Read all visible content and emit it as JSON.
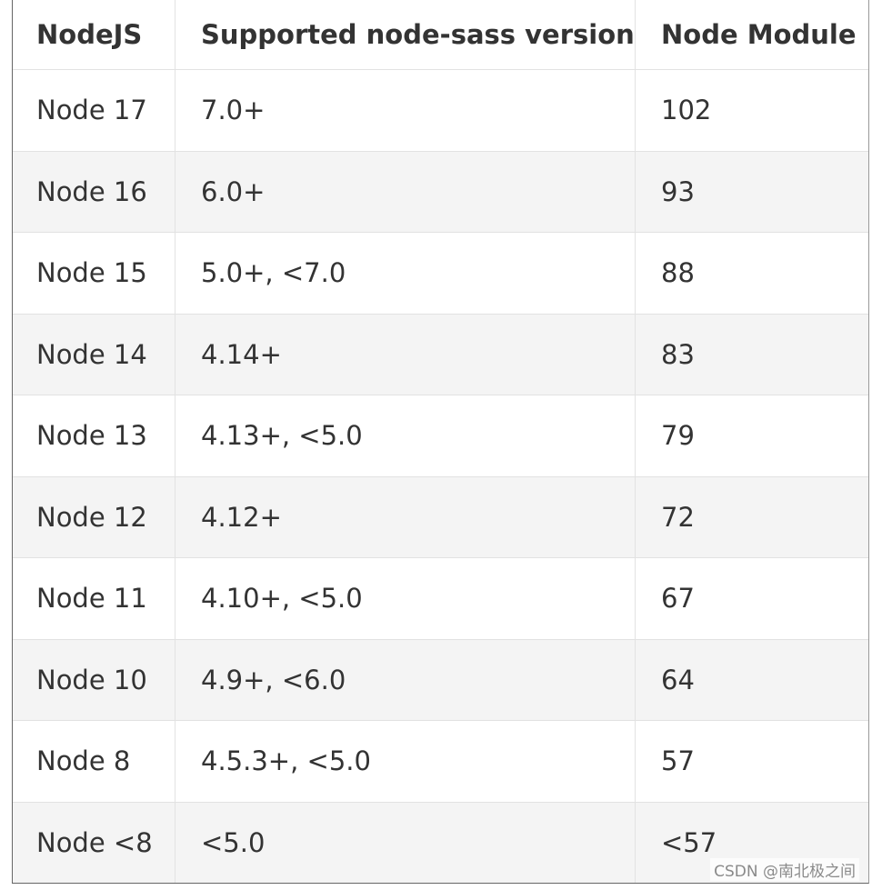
{
  "table": {
    "header": [
      "NodeJS",
      "Supported node-sass version",
      "Node Module"
    ],
    "rows": [
      [
        "Node 17",
        "7.0+",
        "102"
      ],
      [
        "Node 16",
        "6.0+",
        "93"
      ],
      [
        "Node 15",
        "5.0+, <7.0",
        "88"
      ],
      [
        "Node 14",
        "4.14+",
        "83"
      ],
      [
        "Node 13",
        "4.13+, <5.0",
        "79"
      ],
      [
        "Node 12",
        "4.12+",
        "72"
      ],
      [
        "Node 11",
        "4.10+, <5.0",
        "67"
      ],
      [
        "Node 10",
        "4.9+, <6.0",
        "64"
      ],
      [
        "Node 8",
        "4.5.3+, <5.0",
        "57"
      ],
      [
        "Node <8",
        "<5.0",
        "<57"
      ]
    ]
  },
  "watermark": "CSDN @南北极之间"
}
